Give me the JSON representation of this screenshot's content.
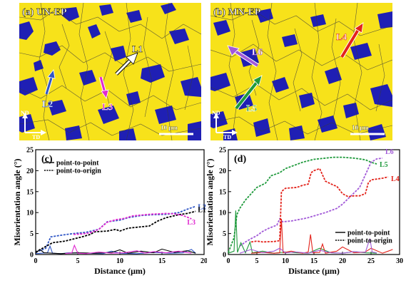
{
  "panels": {
    "a": {
      "label": "(a) UN-EP",
      "lines": [
        "L1",
        "L2",
        "L3"
      ],
      "scale_bar": "10 μm",
      "axis_nd": "ND",
      "axis_td": "TD"
    },
    "b": {
      "label": "(b) MN-EP",
      "lines": [
        "L4",
        "L5",
        "L6"
      ],
      "scale_bar": "10 μm",
      "axis_nd": "ND",
      "axis_td": "TD"
    }
  },
  "colors": {
    "grain_yellow": "#f7e21a",
    "grain_blue": "#1f1fb4",
    "L1": "#ffffff",
    "L2": "#2f56c6",
    "L3": "#e02ad0",
    "L4": "#e3231b",
    "L5": "#1f9a3c",
    "L6": "#a25ad8"
  },
  "chart_data": [
    {
      "type": "line",
      "panel_label": "(c)",
      "xlabel": "Distance (μm)",
      "ylabel": "Misorientation angle (°)",
      "xlim": [
        0,
        20
      ],
      "ylim": [
        0,
        25
      ],
      "xticks": [
        0,
        5,
        10,
        15,
        20
      ],
      "yticks": [
        0,
        5,
        10,
        15,
        20,
        25
      ],
      "legend": {
        "placement": "top-left",
        "entries": [
          {
            "label": "point-to-point",
            "style": "solid"
          },
          {
            "label": "point-to-origin",
            "style": "dotted"
          }
        ]
      },
      "series": [
        {
          "name": "L2",
          "style": "dotted",
          "color": "#2f56c6",
          "x": [
            0,
            1.2,
            1.8,
            3,
            4.5,
            6,
            7.5,
            8.5,
            10,
            11,
            12.5,
            14,
            15.5,
            17,
            18,
            19
          ],
          "y": [
            0.5,
            1.5,
            4.2,
            4.6,
            5.0,
            5.3,
            6.0,
            7.8,
            8.2,
            8.8,
            9.3,
            9.5,
            9.6,
            10.0,
            10.8,
            11.5
          ]
        },
        {
          "name": "L1",
          "style": "dotted",
          "color": "#000000",
          "x": [
            0,
            2,
            3.5,
            4.5,
            5.5,
            6.5,
            7,
            8.5,
            9.5,
            10,
            11,
            12.5,
            13.5,
            14.5,
            15.5,
            17,
            18,
            19
          ],
          "y": [
            0.6,
            2.8,
            3.2,
            3.7,
            4.2,
            4.8,
            5.4,
            5.6,
            6.0,
            5.6,
            6.3,
            6.6,
            6.8,
            8.0,
            8.8,
            9.5,
            9.8,
            10.3
          ]
        },
        {
          "name": "L3",
          "style": "dotted",
          "color": "#e02ad0",
          "x": [
            4.5,
            5.5,
            6.5,
            7.5,
            8.5,
            9.5,
            10.5,
            11.5,
            12.5,
            13.5,
            14.5,
            15.5,
            16.5,
            17.5,
            18.5
          ],
          "y": [
            4.8,
            4.9,
            5.2,
            6.0,
            7.7,
            8.3,
            8.6,
            9.2,
            9.4,
            9.6,
            9.7,
            9.8,
            9.7,
            9.3,
            8.5
          ]
        },
        {
          "name": "L2 point-to-point",
          "style": "solid",
          "color": "#2f56c6",
          "x": [
            0,
            1.4,
            1.7,
            2,
            3,
            4,
            6,
            8,
            9,
            10,
            12,
            14,
            16,
            17.5,
            18.5,
            19
          ],
          "y": [
            0.2,
            0.4,
            2.0,
            0.3,
            0.2,
            0.4,
            0.3,
            0.2,
            0.8,
            0.3,
            0.2,
            0.5,
            0.3,
            0.4,
            1.2,
            0.3
          ]
        },
        {
          "name": "L1 point-to-point",
          "style": "solid",
          "color": "#000000",
          "x": [
            0,
            0.5,
            1,
            2,
            3,
            5,
            7,
            9,
            10,
            11,
            12.5,
            14,
            15,
            16.5,
            18,
            19
          ],
          "y": [
            0.3,
            1.2,
            0.4,
            0.3,
            0.2,
            0.4,
            0.3,
            0.5,
            1.1,
            0.3,
            0.8,
            0.4,
            1.3,
            0.5,
            0.9,
            0.3
          ]
        },
        {
          "name": "L3 point-to-point",
          "style": "solid",
          "color": "#e02ad0",
          "x": [
            3.5,
            4.3,
            4.6,
            5,
            6,
            7.5,
            9,
            10.5,
            12,
            13,
            14,
            15.5,
            17,
            18.5
          ],
          "y": [
            0.2,
            0.4,
            2.2,
            0.3,
            0.2,
            0.6,
            0.3,
            0.4,
            0.9,
            0.3,
            0.7,
            0.4,
            0.8,
            0.3
          ]
        }
      ]
    },
    {
      "type": "line",
      "panel_label": "(d)",
      "xlabel": "Distance (μm)",
      "ylabel": "Misorientation angle (°)",
      "xlim": [
        0,
        30
      ],
      "ylim": [
        0,
        25
      ],
      "xticks": [
        0,
        5,
        10,
        15,
        20,
        25,
        30
      ],
      "yticks": [
        0,
        5,
        10,
        15,
        20,
        25
      ],
      "legend": {
        "placement": "bottom-right",
        "entries": [
          {
            "label": "point-to-point",
            "style": "solid"
          },
          {
            "label": "point-to-origin",
            "style": "dotted"
          }
        ]
      },
      "series": [
        {
          "name": "L5",
          "style": "dotted",
          "color": "#1f9a3c",
          "x": [
            0,
            1,
            1.5,
            2,
            3,
            4,
            5,
            6.5,
            7.5,
            9,
            10,
            12,
            13,
            15,
            17,
            18.5,
            20,
            22,
            24,
            25,
            26
          ],
          "y": [
            0.5,
            4.0,
            9.5,
            11.0,
            13.0,
            14.5,
            16.0,
            17.0,
            18.8,
            19.5,
            20.5,
            21.5,
            22.0,
            22.7,
            23.0,
            23.2,
            23.2,
            23.0,
            22.6,
            22.0,
            21.6
          ]
        },
        {
          "name": "L6",
          "style": "dotted",
          "color": "#a25ad8",
          "x": [
            2,
            3,
            4,
            5,
            6,
            7,
            8.5,
            9,
            9.5,
            11,
            13,
            14,
            15,
            17,
            19,
            20,
            21.5,
            23,
            24,
            25,
            26,
            27
          ],
          "y": [
            2.0,
            3.0,
            3.8,
            4.5,
            5.5,
            6.2,
            7.0,
            8.5,
            7.8,
            8.0,
            8.5,
            8.8,
            9.2,
            10.0,
            11.0,
            12.0,
            14.0,
            16.0,
            19.0,
            22.0,
            22.8,
            23.0
          ]
        },
        {
          "name": "L4",
          "style": "dotted",
          "color": "#e3231b",
          "x": [
            4,
            5,
            6,
            8,
            9,
            9.3,
            10,
            12,
            13,
            14,
            14.5,
            15,
            16,
            17,
            18.5,
            19,
            20,
            21,
            22,
            23,
            24,
            24.5,
            25,
            26,
            27,
            28
          ],
          "y": [
            3.0,
            3.2,
            3.0,
            3.1,
            3.3,
            15.0,
            15.8,
            16.0,
            16.5,
            16.8,
            19.5,
            20.0,
            20.5,
            17.5,
            16.5,
            16.3,
            14.5,
            13.8,
            14.0,
            14.0,
            14.5,
            17.0,
            17.8,
            18.0,
            18.2,
            18.5
          ]
        },
        {
          "name": "L5 point-to-point",
          "style": "solid",
          "color": "#1f9a3c",
          "x": [
            0,
            1,
            1.3,
            1.6,
            2.2,
            3,
            3.8,
            4.2,
            6,
            8,
            10,
            12,
            14,
            16,
            18,
            20,
            22,
            24,
            26
          ],
          "y": [
            0.3,
            0.8,
            10.5,
            0.5,
            2.8,
            0.4,
            3.0,
            0.4,
            0.8,
            0.3,
            0.6,
            0.4,
            0.3,
            1.5,
            0.4,
            0.3,
            0.7,
            0.4,
            0.3
          ]
        },
        {
          "name": "L4 point-to-point",
          "style": "solid",
          "color": "#e3231b",
          "x": [
            4,
            6,
            8,
            9,
            9.3,
            9.6,
            11,
            13,
            14,
            14.4,
            14.8,
            16,
            16.5,
            17,
            19,
            20,
            22,
            24,
            25,
            27,
            28,
            28.8
          ],
          "y": [
            0.3,
            0.5,
            0.3,
            0.4,
            8.5,
            0.4,
            0.8,
            0.3,
            0.6,
            4.8,
            0.4,
            0.5,
            2.5,
            0.3,
            0.8,
            1.8,
            0.4,
            0.6,
            1.5,
            0.3,
            0.8,
            1.2
          ]
        },
        {
          "name": "L6 point-to-point",
          "style": "solid",
          "color": "#a25ad8",
          "x": [
            2,
            4,
            6,
            8,
            9,
            10,
            12,
            14,
            16,
            18,
            20,
            22,
            24,
            24.8,
            25.2,
            26
          ],
          "y": [
            0.3,
            1.2,
            0.4,
            0.8,
            1.5,
            0.4,
            0.6,
            0.3,
            1.0,
            0.4,
            0.3,
            0.7,
            0.5,
            3.8,
            0.6,
            0.4
          ]
        }
      ]
    }
  ]
}
